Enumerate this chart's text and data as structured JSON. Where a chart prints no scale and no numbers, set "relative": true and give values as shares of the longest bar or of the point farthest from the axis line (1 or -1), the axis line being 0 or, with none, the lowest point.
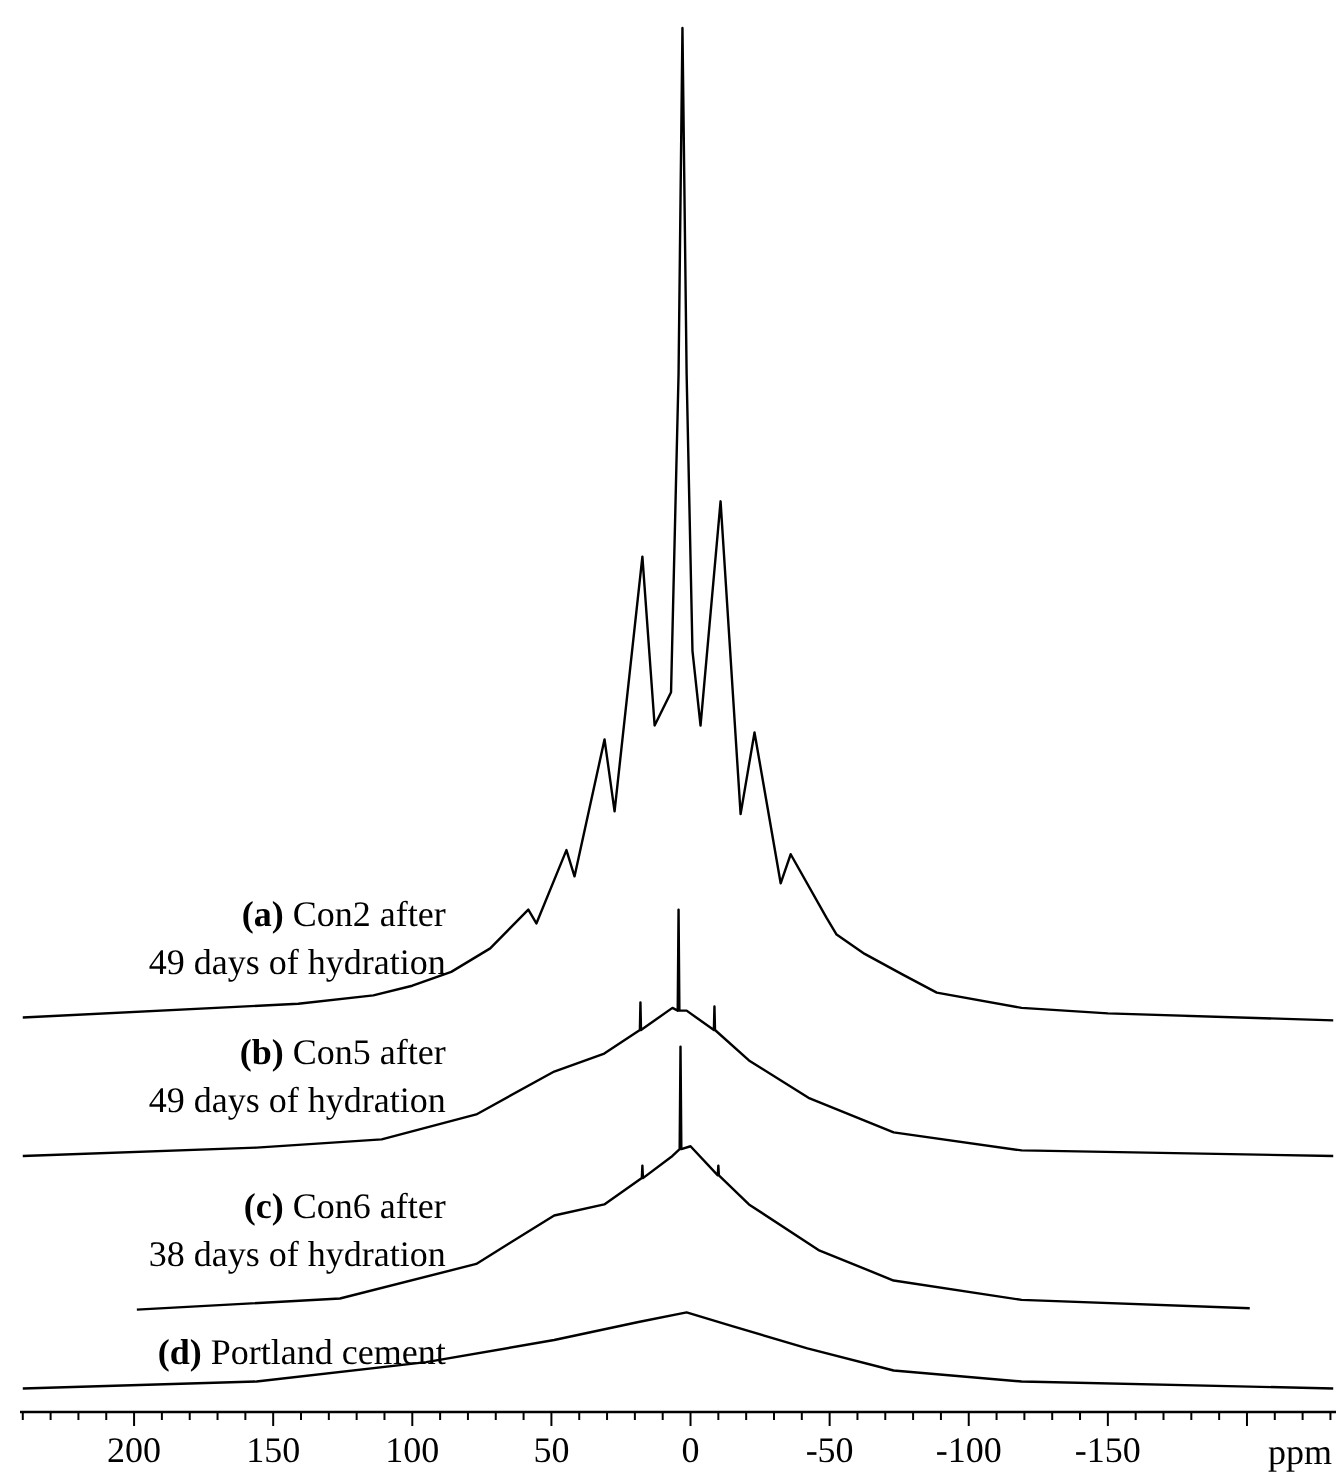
{
  "chart_data": {
    "type": "line",
    "relative": true,
    "xlabel": "ppm",
    "xlim": [
      241,
      -232
    ],
    "xticks": [
      {
        "value": 240,
        "label": null
      },
      {
        "value": 230,
        "label": null
      },
      {
        "value": 220,
        "label": null
      },
      {
        "value": 210,
        "label": null
      },
      200,
      {
        "value": 190,
        "label": null
      },
      {
        "value": 180,
        "label": null
      },
      {
        "value": 170,
        "label": null
      },
      {
        "value": 160,
        "label": null
      },
      150,
      {
        "value": 140,
        "label": null
      },
      {
        "value": 130,
        "label": null
      },
      {
        "value": 120,
        "label": null
      },
      {
        "value": 110,
        "label": null
      },
      100,
      {
        "value": 90,
        "label": null
      },
      {
        "value": 80,
        "label": null
      },
      {
        "value": 70,
        "label": null
      },
      {
        "value": 60,
        "label": null
      },
      50,
      {
        "value": 40,
        "label": null
      },
      {
        "value": 30,
        "label": null
      },
      {
        "value": 20,
        "label": null
      },
      {
        "value": 10,
        "label": null
      },
      0,
      {
        "value": -10,
        "label": null
      },
      {
        "value": -20,
        "label": null
      },
      {
        "value": -30,
        "label": null
      },
      {
        "value": -40,
        "label": null
      },
      -50,
      {
        "value": -60,
        "label": null
      },
      {
        "value": -70,
        "label": null
      },
      {
        "value": -80,
        "label": null
      },
      {
        "value": -90,
        "label": null
      },
      -100,
      {
        "value": -110,
        "label": null
      },
      {
        "value": -120,
        "label": null
      },
      {
        "value": -130,
        "label": null
      },
      {
        "value": -140,
        "label": null
      },
      -150,
      {
        "value": -160,
        "label": null
      },
      {
        "value": -170,
        "label": null
      },
      {
        "value": -180,
        "label": null
      },
      {
        "value": -190,
        "label": null
      },
      {
        "value": -200,
        "label": null
      },
      {
        "value": -210,
        "label": null
      },
      {
        "value": -220,
        "label": null
      },
      {
        "value": -230,
        "label": null
      }
    ],
    "grid": false,
    "line_style": "solid",
    "series": [
      {
        "name": "(a) Con2 after\n49 days of hydration",
        "color": "#000000",
        "x": [
          240,
          141,
          114,
          100,
          86,
          72,
          58.3,
          55.4,
          44.6,
          41.7,
          30.9,
          27.3,
          17.3,
          12.9,
          7,
          4.3,
          2.9,
          1.4,
          -0.7,
          -3.6,
          -10.8,
          -18,
          -23,
          -32.4,
          -36,
          -48.9,
          -52.5,
          -62.6,
          -76.3,
          -88.5,
          -119,
          -150,
          -231
        ],
        "values": [
          0.285,
          0.295,
          0.301,
          0.308,
          0.318,
          0.335,
          0.363,
          0.353,
          0.406,
          0.387,
          0.486,
          0.434,
          0.618,
          0.496,
          0.52,
          0.75,
          1,
          0.75,
          0.55,
          0.496,
          0.658,
          0.432,
          0.491,
          0.382,
          0.403,
          0.357,
          0.345,
          0.331,
          0.316,
          0.303,
          0.292,
          0.288,
          0.283
        ]
      },
      {
        "name": "(b) Con5 after\n49 days of hydration",
        "color": "#000000",
        "x": [
          240,
          156,
          111,
          77,
          49,
          31,
          18.2,
          18,
          17.8,
          6.5,
          4.6,
          4.3,
          4,
          1.4,
          -8.4,
          -8.6,
          -8.8,
          -21,
          -42.4,
          -73,
          -119,
          -231
        ],
        "values": [
          0.185,
          0.191,
          0.197,
          0.215,
          0.246,
          0.259,
          0.276,
          0.296,
          0.276,
          0.292,
          0.29,
          0.363,
          0.29,
          0.29,
          0.276,
          0.293,
          0.276,
          0.254,
          0.227,
          0.202,
          0.189,
          0.185
        ]
      },
      {
        "name": "(c) Con6 after\n38 days of hydration",
        "color": "#000000",
        "x": [
          199,
          126,
          77,
          49,
          31,
          17.5,
          17.3,
          17.1,
          6.5,
          3.9,
          3.6,
          3.3,
          0,
          -9.8,
          -10,
          -10.2,
          -21,
          -46,
          -73,
          -119,
          -201
        ],
        "values": [
          0.074,
          0.082,
          0.107,
          0.142,
          0.15,
          0.169,
          0.178,
          0.169,
          0.185,
          0.19,
          0.264,
          0.19,
          0.192,
          0.171,
          0.178,
          0.171,
          0.15,
          0.117,
          0.095,
          0.081,
          0.075
        ]
      },
      {
        "name": "(d) Portland cement",
        "color": "#000000",
        "x": [
          240,
          156,
          95,
          49,
          18.7,
          1.4,
          -15,
          -42,
          -73,
          -119,
          -231
        ],
        "values": [
          0.017,
          0.022,
          0.036,
          0.052,
          0.065,
          0.072,
          0.062,
          0.046,
          0.03,
          0.022,
          0.017
        ]
      }
    ]
  }
}
